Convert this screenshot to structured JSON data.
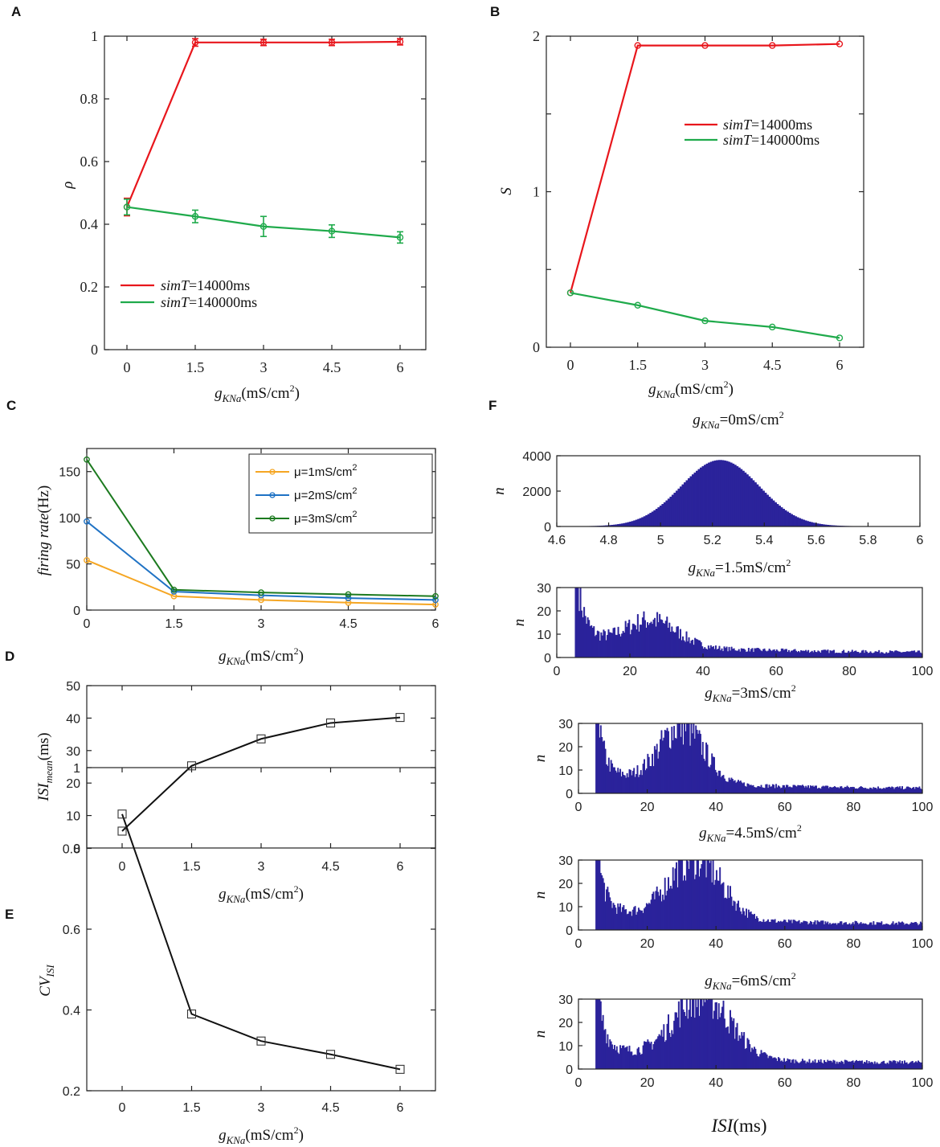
{
  "panel_letters": [
    "A",
    "B",
    "C",
    "D",
    "E",
    "F"
  ],
  "colors": {
    "red": "#e8161c",
    "green": "#1faa4b",
    "orange": "#f5a623",
    "blue": "#1f72c4",
    "dkgreen": "#1c7a1f",
    "black": "#111111",
    "navy": "#2b239b"
  },
  "chart_data": [
    {
      "id": "A",
      "type": "line",
      "ylabel": "ρ",
      "xlabel": {
        "main": "g",
        "sub": "KNa",
        "unit": "(mS/cm",
        "sup": "2",
        "close": ")"
      },
      "categories": [
        "0",
        "1.5",
        "3",
        "4.5",
        "6"
      ],
      "ylim": [
        0,
        1
      ],
      "yticks": [
        "0",
        "0.2",
        "0.4",
        "0.6",
        "0.8",
        "1"
      ],
      "series": [
        {
          "name": "simT=14000ms",
          "legend_italic": "simT",
          "legend_rest": "=14000ms",
          "color": "red",
          "values": [
            0.455,
            0.98,
            0.98,
            0.98,
            0.982
          ],
          "errors": [
            0.028,
            0.012,
            0.01,
            0.01,
            0.01
          ]
        },
        {
          "name": "simT=140000ms",
          "legend_italic": "simT",
          "legend_rest": "=140000ms",
          "color": "green",
          "values": [
            0.455,
            0.425,
            0.393,
            0.378,
            0.358
          ],
          "errors": [
            0.025,
            0.02,
            0.032,
            0.02,
            0.018
          ]
        }
      ],
      "legend": "lower-left"
    },
    {
      "id": "B",
      "type": "line",
      "ylabel": "S",
      "xlabel": {
        "main": "g",
        "sub": "KNa",
        "unit": "(mS/cm",
        "sup": "2",
        "close": ")"
      },
      "categories": [
        "0",
        "1.5",
        "3",
        "4.5",
        "6"
      ],
      "ylim": [
        0,
        2
      ],
      "yticks": [
        "0",
        "1",
        "2"
      ],
      "series": [
        {
          "name": "simT=14000ms",
          "legend_italic": "simT",
          "legend_rest": "=14000ms",
          "color": "red",
          "values": [
            0.35,
            1.94,
            1.94,
            1.94,
            1.95
          ]
        },
        {
          "name": "simT=140000ms",
          "legend_italic": "simT",
          "legend_rest": "=140000ms",
          "color": "green",
          "values": [
            0.35,
            0.27,
            0.17,
            0.13,
            0.06
          ]
        }
      ],
      "legend": "upper-right"
    },
    {
      "id": "C",
      "type": "line",
      "ylabel": "firing rate(Hz)",
      "xlabel": {
        "main": "g",
        "sub": "KNa",
        "unit": "(mS/cm",
        "sup": "2",
        "close": ")"
      },
      "categories": [
        "0",
        "1.5",
        "3",
        "4.5",
        "6"
      ],
      "ylim": [
        0,
        175
      ],
      "yticks": [
        "0",
        "50",
        "100",
        "150"
      ],
      "series": [
        {
          "name": "μ=1mS/cm2",
          "legend_rest": "μ=1mS/cm",
          "sup": "2",
          "color": "orange",
          "values": [
            54,
            15,
            11,
            8,
            6
          ]
        },
        {
          "name": "μ=2mS/cm2",
          "legend_rest": "μ=2mS/cm",
          "sup": "2",
          "color": "blue",
          "values": [
            96,
            20,
            16,
            13,
            11
          ]
        },
        {
          "name": "μ=3mS/cm2",
          "legend_rest": "μ=3mS/cm",
          "sup": "2",
          "color": "dkgreen",
          "values": [
            163,
            22,
            19,
            17,
            15
          ]
        }
      ],
      "legend": "upper-right"
    },
    {
      "id": "D",
      "type": "line",
      "ylabel": "ISI",
      "ylabel_sub": "mean",
      "ylabel_unit": "(ms)",
      "xlabel": {
        "main": "g",
        "sub": "KNa",
        "unit": "(mS/cm",
        "sup": "2",
        "close": ")"
      },
      "categories": [
        "0",
        "1.5",
        "3",
        "4.5",
        "6"
      ],
      "ylim": [
        0,
        50
      ],
      "yticks": [
        "0",
        "10",
        "20",
        "30",
        "40",
        "50"
      ],
      "series": [
        {
          "name": "ISI mean",
          "color": "black",
          "values": [
            5.2,
            25.3,
            33.6,
            38.5,
            40.2
          ]
        }
      ]
    },
    {
      "id": "E",
      "type": "line",
      "ylabel": "CV",
      "ylabel_sub": "ISI",
      "xlabel": {
        "main": "g",
        "sub": "KNa",
        "unit": "(mS/cm",
        "sup": "2",
        "close": ")"
      },
      "categories": [
        "0",
        "1.5",
        "3",
        "4.5",
        "6"
      ],
      "ylim": [
        0.2,
        1
      ],
      "yticks": [
        "0.2",
        "0.4",
        "0.6",
        "0.8",
        "1"
      ],
      "series": [
        {
          "name": "CV ISI",
          "color": "black",
          "values": [
            0.885,
            0.39,
            0.323,
            0.29,
            0.253
          ]
        }
      ]
    },
    {
      "id": "F",
      "type": "histogram",
      "xlabel": "ISI(ms)",
      "ylabel": "n",
      "panels": [
        {
          "title_main": "g",
          "title_sub": "KNa",
          "title_rest": "=0mS/cm",
          "title_sup": "2",
          "xlim": [
            4.6,
            6
          ],
          "xticks": [
            "4.6",
            "4.8",
            "5",
            "5.2",
            "5.4",
            "5.6",
            "5.8",
            "6"
          ],
          "ylim": [
            0,
            4000
          ],
          "yticks": [
            "0",
            "2000",
            "4000"
          ],
          "dist": {
            "kind": "gauss",
            "mean": 5.23,
            "sd": 0.15,
            "peak": 3750
          }
        },
        {
          "title_main": "g",
          "title_sub": "KNa",
          "title_rest": "=1.5mS/cm",
          "title_sup": "2",
          "xlim": [
            0,
            100
          ],
          "xticks": [
            "0",
            "20",
            "40",
            "60",
            "80",
            "100"
          ],
          "ylim": [
            0,
            30
          ],
          "yticks": [
            "0",
            "10",
            "20",
            "30"
          ],
          "dist": {
            "kind": "isi",
            "onset": 5,
            "spike": 22,
            "hump_mu": 26,
            "hump_sd": 7,
            "hump_amp": 11,
            "tail": 2
          }
        },
        {
          "title_main": "g",
          "title_sub": "KNa",
          "title_rest": "=3mS/cm",
          "title_sup": "2",
          "xlim": [
            0,
            100
          ],
          "xticks": [
            "0",
            "20",
            "40",
            "60",
            "80",
            "100"
          ],
          "ylim": [
            0,
            30
          ],
          "yticks": [
            "0",
            "10",
            "20",
            "30"
          ],
          "dist": {
            "kind": "isi",
            "onset": 5,
            "spike": 20,
            "hump_mu": 30,
            "hump_sd": 6.5,
            "hump_amp": 24,
            "tail": 2
          }
        },
        {
          "title_main": "g",
          "title_sub": "KNa",
          "title_rest": "=4.5mS/cm",
          "title_sup": "2",
          "xlim": [
            0,
            100
          ],
          "xticks": [
            "0",
            "20",
            "40",
            "60",
            "80",
            "100"
          ],
          "ylim": [
            0,
            30
          ],
          "yticks": [
            "0",
            "10",
            "20",
            "30"
          ],
          "dist": {
            "kind": "isi",
            "onset": 5,
            "spike": 20,
            "hump_mu": 34,
            "hump_sd": 7.5,
            "hump_amp": 26,
            "tail": 2.5
          }
        },
        {
          "title_main": "g",
          "title_sub": "KNa",
          "title_rest": "=6mS/cm",
          "title_sup": "2",
          "xlim": [
            0,
            100
          ],
          "xticks": [
            "0",
            "20",
            "40",
            "60",
            "80",
            "100"
          ],
          "ylim": [
            0,
            30
          ],
          "yticks": [
            "0",
            "10",
            "20",
            "30"
          ],
          "dist": {
            "kind": "isi",
            "onset": 5,
            "spike": 20,
            "hump_mu": 36,
            "hump_sd": 8,
            "hump_amp": 27,
            "tail": 2.5
          }
        }
      ]
    }
  ]
}
